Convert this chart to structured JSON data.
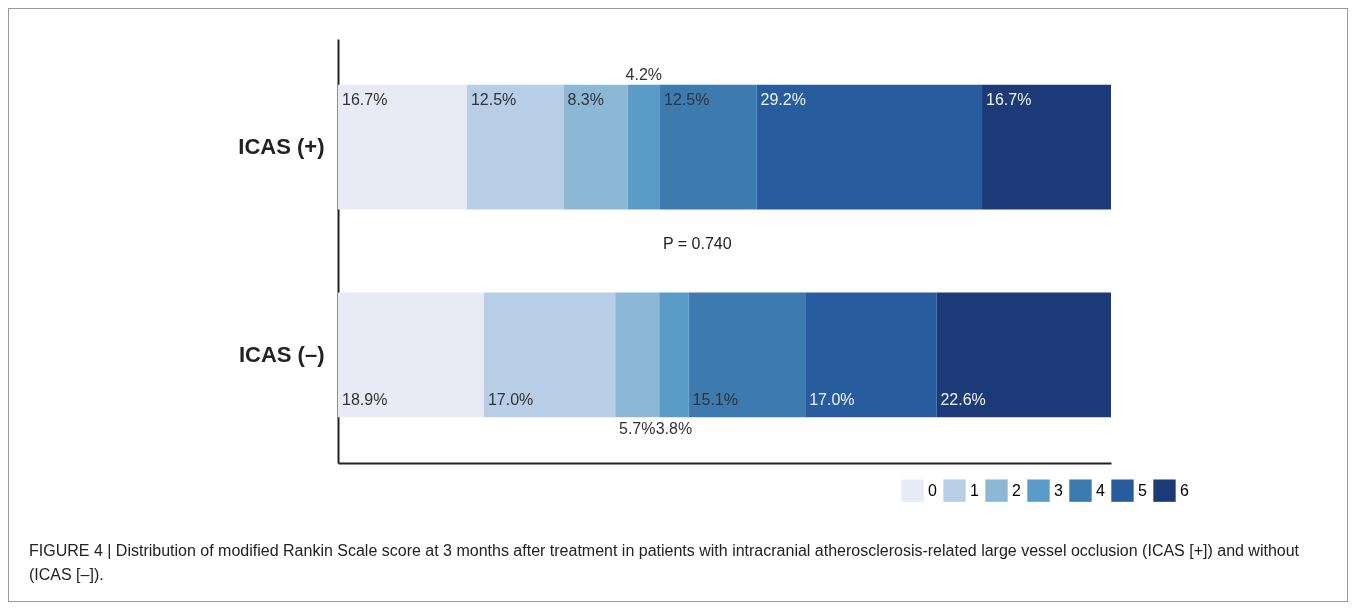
{
  "chart_data": {
    "type": "bar",
    "orientation": "horizontal",
    "stacked": true,
    "categories": [
      "ICAS (+)",
      "ICAS (–)"
    ],
    "series": [
      {
        "name": "0",
        "color": "#e8eaf5",
        "values": [
          16.7,
          18.9
        ],
        "value_labels": [
          "16.7%",
          "18.9%"
        ]
      },
      {
        "name": "1",
        "color": "#b8cde6",
        "values": [
          12.5,
          17.0
        ],
        "value_labels": [
          "12.5%",
          "17.0%"
        ]
      },
      {
        "name": "2",
        "color": "#8cb8d6",
        "values": [
          8.3,
          5.7
        ],
        "value_labels": [
          "8.3%",
          "5.7%"
        ]
      },
      {
        "name": "3",
        "color": "#5b9bc8",
        "values": [
          4.2,
          3.8
        ],
        "value_labels": [
          "4.2%",
          "3.8%"
        ]
      },
      {
        "name": "4",
        "color": "#3c7ab0",
        "values": [
          12.5,
          15.1
        ],
        "value_labels": [
          "12.5%",
          "15.1%"
        ]
      },
      {
        "name": "5",
        "color": "#275d9e",
        "values": [
          29.2,
          17.0
        ],
        "value_labels": [
          "29.2%",
          "17.0%"
        ]
      },
      {
        "name": "6",
        "color": "#1c3a78",
        "values": [
          16.7,
          22.6
        ],
        "value_labels": [
          "16.7%",
          "22.6%"
        ]
      }
    ],
    "xlim": [
      0,
      100.1
    ],
    "tick_labels": "y",
    "legend": "bottom right",
    "annotations": [
      "P = 0.740",
      "FIGURE 4 | Distribution of modified Rankin Scale score at 3 months after treatment in patients with intracranial atherosclerosis-related large vessel occlusion (ICAS [+]) and without (ICAS [–])."
    ]
  }
}
